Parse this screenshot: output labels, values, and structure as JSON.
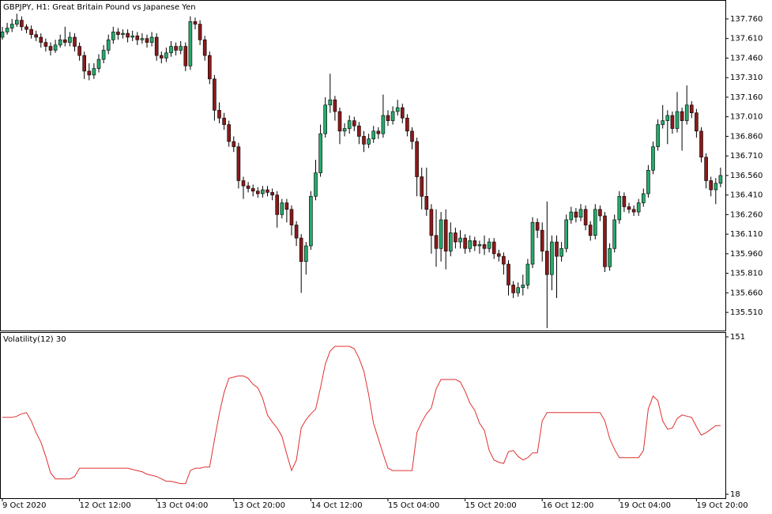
{
  "chart_data": [
    {
      "type": "candlestick",
      "title": "GBPJPY, H1:  Great Britain Pound vs Japanese Yen",
      "up_color": "#26a96c",
      "down_color": "#8b1a1a",
      "wick_color": "#000000",
      "ylim": [
        135.371,
        137.887
      ],
      "yticks": [
        {
          "value": 137.76,
          "label": "137.760"
        },
        {
          "value": 137.61,
          "label": "137.610"
        },
        {
          "value": 137.46,
          "label": "137.460"
        },
        {
          "value": 137.31,
          "label": "137.310"
        },
        {
          "value": 137.16,
          "label": "137.160"
        },
        {
          "value": 137.01,
          "label": "137.010"
        },
        {
          "value": 136.86,
          "label": "136.860"
        },
        {
          "value": 136.71,
          "label": "136.710"
        },
        {
          "value": 136.56,
          "label": "136.560"
        },
        {
          "value": 136.41,
          "label": "136.410"
        },
        {
          "value": 136.26,
          "label": "136.260"
        },
        {
          "value": 136.11,
          "label": "136.110"
        },
        {
          "value": 135.96,
          "label": "135.960"
        },
        {
          "value": 135.81,
          "label": "135.810"
        },
        {
          "value": 135.66,
          "label": "135.660"
        },
        {
          "value": 135.51,
          "label": "135.510"
        }
      ],
      "categories": [
        "9 Oct 2020",
        null,
        null,
        null,
        null,
        null,
        null,
        null,
        null,
        null,
        null,
        null,
        null,
        null,
        null,
        null,
        "12 Oct 12:00",
        null,
        null,
        null,
        null,
        null,
        null,
        null,
        null,
        null,
        null,
        null,
        null,
        null,
        null,
        null,
        "13 Oct 04:00",
        null,
        null,
        null,
        null,
        null,
        null,
        null,
        null,
        null,
        null,
        null,
        null,
        null,
        null,
        null,
        "13 Oct 20:00",
        null,
        null,
        null,
        null,
        null,
        null,
        null,
        null,
        null,
        null,
        null,
        null,
        null,
        null,
        null,
        "14 Oct 12:00",
        null,
        null,
        null,
        null,
        null,
        null,
        null,
        null,
        null,
        null,
        null,
        null,
        null,
        null,
        null,
        "15 Oct 04:00",
        null,
        null,
        null,
        null,
        null,
        null,
        null,
        null,
        null,
        null,
        null,
        null,
        null,
        null,
        null,
        "15 Oct 20:00",
        null,
        null,
        null,
        null,
        null,
        null,
        null,
        null,
        null,
        null,
        null,
        null,
        null,
        null,
        null,
        "16 Oct 12:00",
        null,
        null,
        null,
        null,
        null,
        null,
        null,
        null,
        null,
        null,
        null,
        null,
        null,
        null,
        null,
        "19 Oct 04:00",
        null,
        null,
        null,
        null,
        null,
        null,
        null,
        null,
        null,
        null,
        null,
        null,
        null,
        null,
        null,
        "19 Oct 20:00",
        null,
        null,
        null,
        null,
        null
      ],
      "ohlc": [
        [
          137.62,
          137.7,
          137.6,
          137.66
        ],
        [
          137.66,
          137.73,
          137.64,
          137.69
        ],
        [
          137.69,
          137.76,
          137.66,
          137.72
        ],
        [
          137.72,
          137.8,
          137.7,
          137.75
        ],
        [
          137.75,
          137.78,
          137.67,
          137.7
        ],
        [
          137.7,
          137.72,
          137.65,
          137.68
        ],
        [
          137.68,
          137.71,
          137.61,
          137.64
        ],
        [
          137.64,
          137.67,
          137.59,
          137.62
        ],
        [
          137.62,
          137.65,
          137.54,
          137.58
        ],
        [
          137.58,
          137.61,
          137.51,
          137.55
        ],
        [
          137.55,
          137.58,
          137.48,
          137.52
        ],
        [
          137.52,
          137.6,
          137.5,
          137.56
        ],
        [
          137.56,
          137.64,
          137.54,
          137.6
        ],
        [
          137.6,
          137.7,
          137.55,
          137.58
        ],
        [
          137.58,
          137.66,
          137.55,
          137.62
        ],
        [
          137.62,
          137.65,
          137.51,
          137.55
        ],
        [
          137.55,
          137.58,
          137.44,
          137.48
        ],
        [
          137.48,
          137.51,
          137.3,
          137.36
        ],
        [
          137.36,
          137.42,
          137.29,
          137.33
        ],
        [
          137.33,
          137.42,
          137.3,
          137.38
        ],
        [
          137.38,
          137.49,
          137.35,
          137.45
        ],
        [
          137.45,
          137.56,
          137.42,
          137.52
        ],
        [
          137.52,
          137.64,
          137.49,
          137.6
        ],
        [
          137.6,
          137.7,
          137.57,
          137.66
        ],
        [
          137.66,
          137.69,
          137.6,
          137.64
        ],
        [
          137.64,
          137.68,
          137.61,
          137.65
        ],
        [
          137.65,
          137.68,
          137.58,
          137.62
        ],
        [
          137.62,
          137.67,
          137.59,
          137.63
        ],
        [
          137.63,
          137.66,
          137.56,
          137.6
        ],
        [
          137.6,
          137.65,
          137.57,
          137.61
        ],
        [
          137.61,
          137.64,
          137.54,
          137.58
        ],
        [
          137.58,
          137.66,
          137.55,
          137.62
        ],
        [
          137.62,
          137.65,
          137.44,
          137.48
        ],
        [
          137.48,
          137.51,
          137.42,
          137.46
        ],
        [
          137.46,
          137.54,
          137.43,
          137.5
        ],
        [
          137.5,
          137.59,
          137.47,
          137.55
        ],
        [
          137.55,
          137.58,
          137.48,
          137.52
        ],
        [
          137.52,
          137.59,
          137.49,
          137.55
        ],
        [
          137.55,
          137.58,
          137.36,
          137.4
        ],
        [
          137.4,
          137.78,
          137.37,
          137.74
        ],
        [
          137.74,
          137.77,
          137.68,
          137.72
        ],
        [
          137.72,
          137.75,
          137.56,
          137.6
        ],
        [
          137.6,
          137.63,
          137.44,
          137.48
        ],
        [
          137.48,
          137.51,
          137.26,
          137.3
        ],
        [
          137.3,
          137.33,
          136.98,
          137.06
        ],
        [
          137.06,
          137.12,
          136.96,
          137.0
        ],
        [
          137.0,
          137.04,
          136.91,
          136.95
        ],
        [
          136.95,
          136.98,
          136.78,
          136.82
        ],
        [
          136.82,
          136.86,
          136.74,
          136.78
        ],
        [
          136.78,
          136.81,
          136.46,
          136.52
        ],
        [
          136.52,
          136.55,
          136.38,
          136.48
        ],
        [
          136.48,
          136.51,
          136.43,
          136.46
        ],
        [
          136.46,
          136.49,
          136.4,
          136.44
        ],
        [
          136.44,
          136.47,
          136.39,
          136.42
        ],
        [
          136.42,
          136.48,
          136.39,
          136.45
        ],
        [
          136.45,
          136.48,
          136.4,
          136.43
        ],
        [
          136.43,
          136.46,
          136.37,
          136.41
        ],
        [
          136.41,
          136.44,
          136.16,
          136.26
        ],
        [
          136.26,
          136.38,
          136.23,
          136.35
        ],
        [
          136.35,
          136.38,
          136.2,
          136.3
        ],
        [
          136.3,
          136.33,
          136.1,
          136.18
        ],
        [
          136.18,
          136.21,
          136.02,
          136.08
        ],
        [
          136.08,
          136.11,
          135.66,
          135.9
        ],
        [
          135.9,
          136.05,
          135.8,
          136.02
        ],
        [
          136.02,
          136.44,
          135.99,
          136.4
        ],
        [
          136.4,
          136.68,
          136.37,
          136.58
        ],
        [
          136.58,
          136.95,
          136.55,
          136.88
        ],
        [
          136.88,
          137.16,
          136.85,
          137.1
        ],
        [
          137.1,
          137.34,
          137.04,
          137.14
        ],
        [
          137.14,
          137.17,
          136.98,
          137.05
        ],
        [
          137.05,
          137.08,
          136.8,
          136.9
        ],
        [
          136.9,
          136.96,
          136.86,
          136.92
        ],
        [
          136.92,
          137.02,
          136.88,
          136.98
        ],
        [
          136.98,
          137.01,
          136.9,
          136.94
        ],
        [
          136.94,
          136.97,
          136.8,
          136.86
        ],
        [
          136.86,
          136.9,
          136.74,
          136.8
        ],
        [
          136.8,
          136.88,
          136.77,
          136.84
        ],
        [
          136.84,
          136.94,
          136.81,
          136.9
        ],
        [
          136.9,
          136.93,
          136.84,
          136.88
        ],
        [
          136.88,
          137.18,
          136.85,
          137.02
        ],
        [
          137.02,
          137.06,
          136.94,
          136.98
        ],
        [
          136.98,
          137.09,
          136.95,
          137.05
        ],
        [
          137.05,
          137.14,
          137.02,
          137.08
        ],
        [
          137.08,
          137.11,
          136.96,
          137.0
        ],
        [
          137.0,
          137.03,
          136.86,
          136.9
        ],
        [
          136.9,
          136.93,
          136.76,
          136.82
        ],
        [
          136.82,
          136.85,
          136.4,
          136.55
        ],
        [
          136.55,
          136.62,
          136.3,
          136.4
        ],
        [
          136.4,
          136.62,
          136.25,
          136.3
        ],
        [
          136.3,
          136.34,
          135.96,
          136.1
        ],
        [
          136.1,
          136.3,
          135.86,
          136.0
        ],
        [
          136.0,
          136.28,
          135.9,
          136.22
        ],
        [
          136.22,
          136.3,
          135.84,
          135.98
        ],
        [
          135.98,
          136.2,
          135.94,
          136.12
        ],
        [
          136.12,
          136.16,
          136.0,
          136.05
        ],
        [
          136.05,
          136.14,
          136.0,
          136.08
        ],
        [
          136.08,
          136.11,
          135.96,
          136.0
        ],
        [
          136.0,
          136.1,
          135.97,
          136.06
        ],
        [
          136.06,
          136.09,
          135.98,
          136.02
        ],
        [
          136.02,
          136.06,
          135.96,
          136.03
        ],
        [
          136.03,
          136.1,
          135.95,
          136.0
        ],
        [
          136.0,
          136.08,
          135.97,
          136.05
        ],
        [
          136.05,
          136.08,
          135.92,
          135.96
        ],
        [
          135.96,
          135.99,
          135.9,
          135.94
        ],
        [
          135.94,
          135.97,
          135.8,
          135.88
        ],
        [
          135.88,
          135.91,
          135.64,
          135.72
        ],
        [
          135.72,
          135.75,
          135.62,
          135.66
        ],
        [
          135.66,
          135.74,
          135.63,
          135.7
        ],
        [
          135.7,
          135.8,
          135.64,
          135.72
        ],
        [
          135.72,
          135.92,
          135.69,
          135.88
        ],
        [
          135.88,
          136.24,
          135.85,
          136.2
        ],
        [
          136.2,
          136.23,
          136.08,
          136.14
        ],
        [
          136.14,
          136.2,
          135.9,
          135.98
        ],
        [
          135.98,
          136.36,
          135.39,
          135.8
        ],
        [
          135.8,
          136.1,
          135.68,
          136.05
        ],
        [
          136.05,
          136.1,
          135.62,
          135.94
        ],
        [
          135.94,
          136.05,
          135.9,
          136.0
        ],
        [
          136.0,
          136.26,
          135.97,
          136.22
        ],
        [
          136.22,
          136.32,
          136.19,
          136.28
        ],
        [
          136.28,
          136.31,
          136.2,
          136.24
        ],
        [
          136.24,
          136.34,
          136.21,
          136.3
        ],
        [
          136.3,
          136.33,
          136.14,
          136.18
        ],
        [
          136.18,
          136.21,
          136.06,
          136.1
        ],
        [
          136.1,
          136.34,
          136.07,
          136.3
        ],
        [
          136.3,
          136.33,
          136.21,
          136.25
        ],
        [
          136.25,
          136.28,
          135.82,
          135.86
        ],
        [
          135.86,
          136.04,
          135.83,
          136.0
        ],
        [
          136.0,
          136.26,
          135.97,
          136.22
        ],
        [
          136.22,
          136.44,
          136.19,
          136.4
        ],
        [
          136.4,
          136.43,
          136.28,
          136.32
        ],
        [
          136.32,
          136.35,
          136.27,
          136.3
        ],
        [
          136.3,
          136.33,
          136.25,
          136.28
        ],
        [
          136.28,
          136.38,
          136.25,
          136.35
        ],
        [
          136.35,
          136.46,
          136.32,
          136.42
        ],
        [
          136.42,
          136.64,
          136.39,
          136.6
        ],
        [
          136.6,
          136.82,
          136.57,
          136.78
        ],
        [
          136.78,
          136.99,
          136.75,
          136.95
        ],
        [
          136.95,
          137.1,
          136.92,
          136.98
        ],
        [
          136.98,
          137.06,
          136.8,
          137.02
        ],
        [
          137.02,
          137.05,
          136.88,
          136.92
        ],
        [
          136.92,
          137.2,
          136.89,
          137.05
        ],
        [
          137.05,
          137.08,
          136.75,
          136.98
        ],
        [
          136.98,
          137.25,
          136.95,
          137.1
        ],
        [
          137.1,
          137.13,
          137.0,
          137.04
        ],
        [
          137.04,
          137.07,
          136.85,
          136.9
        ],
        [
          136.9,
          136.93,
          136.66,
          136.7
        ],
        [
          136.7,
          136.73,
          136.46,
          136.52
        ],
        [
          136.52,
          136.55,
          136.4,
          136.45
        ],
        [
          136.45,
          136.54,
          136.34,
          136.5
        ],
        [
          136.5,
          136.62,
          136.47,
          136.56
        ]
      ]
    },
    {
      "type": "line",
      "title": "Volatility(12) 30",
      "color": "#e03030",
      "ylim": [
        14.7,
        155
      ],
      "yticks": [
        151,
        18
      ],
      "values": [
        83,
        83,
        83,
        84,
        86,
        87,
        80,
        70,
        62,
        50,
        36,
        31,
        31,
        31,
        31,
        33,
        40,
        40,
        40,
        40,
        40,
        40,
        40,
        40,
        40,
        40,
        40,
        39,
        38,
        37,
        35,
        34,
        33,
        31,
        29,
        29,
        28,
        27,
        27,
        38,
        40,
        40,
        41,
        41,
        64,
        86,
        104,
        116,
        117,
        118,
        118,
        116,
        111,
        108,
        99,
        85,
        79,
        74,
        67,
        52,
        38,
        47,
        74,
        81,
        86,
        90,
        108,
        128,
        139,
        143,
        143,
        143,
        143,
        141,
        133,
        122,
        102,
        78,
        65,
        52,
        40,
        38,
        38,
        38,
        38,
        38,
        70,
        79,
        86,
        91,
        107,
        115,
        115,
        115,
        115,
        113,
        105,
        95,
        89,
        78,
        72,
        55,
        47,
        45,
        44,
        54,
        55,
        50,
        47,
        49,
        53,
        53,
        80,
        87,
        87,
        87,
        87,
        87,
        87,
        87,
        87,
        87,
        87,
        87,
        87,
        80,
        65,
        56,
        49,
        49,
        49,
        49,
        49,
        55,
        90,
        101,
        97,
        80,
        73,
        74,
        82,
        85,
        84,
        83,
        75,
        68,
        70,
        73,
        76,
        76
      ]
    }
  ]
}
